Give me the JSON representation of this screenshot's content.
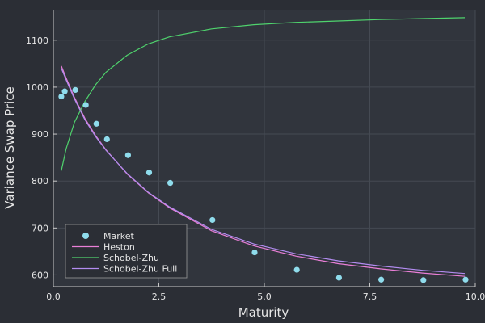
{
  "chart_data": {
    "type": "line",
    "title": "",
    "xlabel": "Maturity",
    "ylabel": "Variance Swap Price",
    "xlim": [
      0,
      10
    ],
    "ylim": [
      575,
      1165
    ],
    "xticks": [
      0,
      2.5,
      5,
      7.5,
      10
    ],
    "xtick_labels": [
      "0.0",
      "2.5",
      "5.0",
      "7.5",
      "10.0"
    ],
    "yticks": [
      600,
      700,
      800,
      900,
      1000,
      1100
    ],
    "ytick_labels": [
      "600",
      "700",
      "800",
      "900",
      "1000",
      "1100"
    ],
    "grid": true,
    "legend_position": "bottom-left",
    "series": [
      {
        "name": "Market",
        "kind": "scatter",
        "color": "#8fdcec",
        "x": [
          0.19,
          0.27,
          0.52,
          0.77,
          1.02,
          1.27,
          1.77,
          2.27,
          2.77,
          3.77,
          4.77,
          5.77,
          6.77,
          7.77,
          8.77,
          9.77
        ],
        "y": [
          980,
          991,
          994,
          962,
          922,
          889,
          855,
          818,
          796,
          717,
          648,
          611,
          594,
          590,
          589,
          590
        ]
      },
      {
        "name": "Heston",
        "kind": "line",
        "color": "#e97fd7",
        "x": [
          0.19,
          0.3,
          0.5,
          0.75,
          1.0,
          1.25,
          1.75,
          2.25,
          2.75,
          3.75,
          4.75,
          5.75,
          6.75,
          7.75,
          8.75,
          9.75
        ],
        "y": [
          1045,
          1020,
          978,
          933,
          897,
          866,
          815,
          775,
          743,
          694,
          662,
          640,
          624,
          613,
          604,
          597
        ]
      },
      {
        "name": "Schobel-Zhu",
        "kind": "line",
        "color": "#4fd36d",
        "x": [
          0.19,
          0.3,
          0.5,
          0.75,
          1.0,
          1.25,
          1.75,
          2.25,
          2.75,
          3.75,
          4.75,
          5.75,
          6.75,
          7.75,
          8.75,
          9.75
        ],
        "y": [
          822,
          868,
          925,
          970,
          1005,
          1032,
          1068,
          1092,
          1107,
          1124,
          1133,
          1138,
          1141,
          1144,
          1146,
          1148
        ]
      },
      {
        "name": "Schobel-Zhu Full",
        "kind": "line",
        "color": "#b28cf0",
        "x": [
          0.19,
          0.3,
          0.5,
          0.75,
          1.0,
          1.25,
          1.75,
          2.25,
          2.75,
          3.75,
          4.75,
          5.75,
          6.75,
          7.75,
          8.75,
          9.75
        ],
        "y": [
          1040,
          1016,
          975,
          930,
          895,
          865,
          816,
          776,
          745,
          697,
          666,
          645,
          630,
          619,
          610,
          603
        ]
      }
    ]
  }
}
